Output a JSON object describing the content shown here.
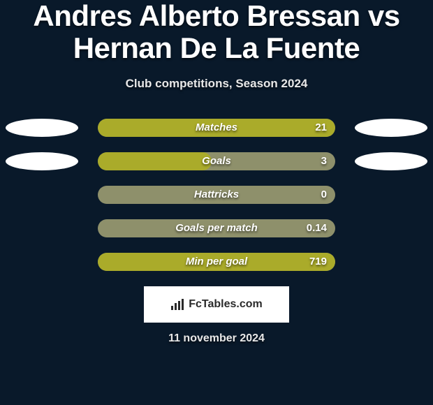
{
  "background_color": "#09192a",
  "title": {
    "text": "Andres Alberto Bressan vs Hernan De La Fuente",
    "color": "#ffffff",
    "fontsize": 42
  },
  "subtitle": {
    "text": "Club competitions, Season 2024",
    "color": "#e8e8e8",
    "fontsize": 17
  },
  "side_ellipse": {
    "color": "#ffffff",
    "show_rows": [
      0,
      1
    ]
  },
  "bar": {
    "track_color": "#8e906b",
    "fill_color": "#aaab2a",
    "label_color": "#ffffff",
    "value_color": "#ffffff",
    "label_fontsize": 15,
    "value_fontsize": 15
  },
  "stats": [
    {
      "label": "Matches",
      "value": "21",
      "fill_pct": 100
    },
    {
      "label": "Goals",
      "value": "3",
      "fill_pct": 48
    },
    {
      "label": "Hattricks",
      "value": "0",
      "fill_pct": 0
    },
    {
      "label": "Goals per match",
      "value": "0.14",
      "fill_pct": 0
    },
    {
      "label": "Min per goal",
      "value": "719",
      "fill_pct": 100
    }
  ],
  "footer": {
    "badge_bg": "#ffffff",
    "badge_width": 208,
    "badge_height": 52,
    "text": "FcTables.com",
    "text_color": "#2a2a2a",
    "fontsize": 16,
    "icon_color": "#2a2a2a"
  },
  "date": {
    "text": "11 november 2024",
    "color": "#e8e8e8",
    "fontsize": 16
  }
}
